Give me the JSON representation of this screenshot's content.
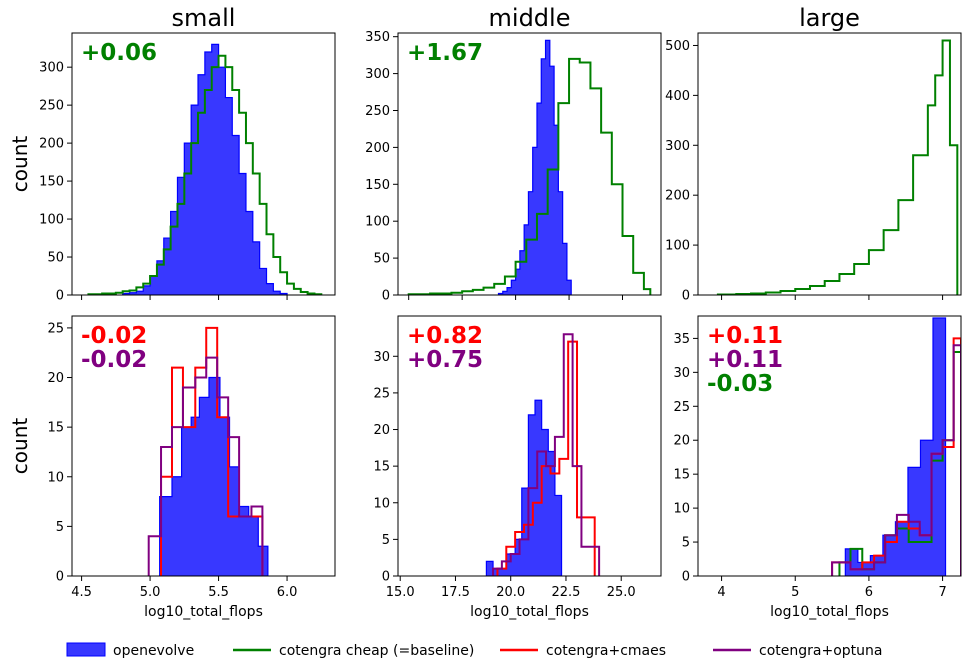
{
  "colors": {
    "openevolve": "#0000ff",
    "cheap": "#008000",
    "cmaes": "#ff0000",
    "optuna": "#800080"
  },
  "legend": [
    {
      "key": "openevolve",
      "label": "openevolve",
      "kind": "patch"
    },
    {
      "key": "cheap",
      "label": "cotengra cheap (=baseline)",
      "kind": "line"
    },
    {
      "key": "cmaes",
      "label": "cotengra+cmaes",
      "kind": "line"
    },
    {
      "key": "optuna",
      "label": "cotengra+optuna",
      "kind": "line"
    }
  ],
  "chart_data": [
    {
      "id": "p00",
      "type": "histogram",
      "title": "small",
      "ylabel": "count",
      "xlabel": "",
      "xlim": [
        4.43,
        6.35
      ],
      "ylim": [
        0,
        345
      ],
      "xticks": [
        4.5,
        5.0,
        5.5,
        6.0
      ],
      "xticklabels": [
        "",
        "",
        "",
        ""
      ],
      "yticks": [
        0,
        50,
        100,
        150,
        200,
        250,
        300
      ],
      "annotations": [
        {
          "text": "+0.06",
          "color": "#008000"
        }
      ],
      "series": [
        {
          "name": "openevolve",
          "kind": "fill",
          "color": "#0000ff",
          "edges": [
            4.8,
            4.85,
            4.9,
            4.95,
            5.0,
            5.05,
            5.1,
            5.15,
            5.2,
            5.25,
            5.3,
            5.35,
            5.4,
            5.45,
            5.5,
            5.55,
            5.6,
            5.65,
            5.7,
            5.75,
            5.8,
            5.85,
            5.9,
            5.95,
            6.0
          ],
          "counts": [
            2,
            3,
            5,
            12,
            25,
            45,
            75,
            110,
            155,
            200,
            250,
            290,
            320,
            330,
            300,
            260,
            210,
            160,
            110,
            70,
            35,
            15,
            5,
            2
          ]
        },
        {
          "name": "cotengra cheap (=baseline)",
          "kind": "step",
          "color": "#008000",
          "edges": [
            4.55,
            4.6,
            4.65,
            4.7,
            4.75,
            4.8,
            4.85,
            4.9,
            4.95,
            5.0,
            5.05,
            5.1,
            5.15,
            5.2,
            5.25,
            5.3,
            5.35,
            5.4,
            5.45,
            5.5,
            5.55,
            5.6,
            5.65,
            5.7,
            5.75,
            5.8,
            5.85,
            5.9,
            5.95,
            6.0,
            6.05,
            6.1,
            6.15,
            6.2,
            6.25
          ],
          "counts": [
            1,
            1,
            2,
            2,
            3,
            5,
            6,
            10,
            15,
            25,
            40,
            60,
            90,
            120,
            160,
            200,
            240,
            270,
            300,
            315,
            300,
            270,
            240,
            200,
            160,
            120,
            80,
            50,
            30,
            15,
            8,
            4,
            2,
            1
          ]
        }
      ]
    },
    {
      "id": "p01",
      "type": "histogram",
      "title": "middle",
      "ylabel": "",
      "xlabel": "",
      "xlim": [
        14.5,
        26.8
      ],
      "ylim": [
        0,
        355
      ],
      "xticks": [
        15.0,
        17.5,
        20.0,
        22.5,
        25.0
      ],
      "xticklabels": [
        "",
        "",
        "",
        "",
        ""
      ],
      "yticks": [
        0,
        50,
        100,
        150,
        200,
        250,
        300,
        350
      ],
      "annotations": [
        {
          "text": "+1.67",
          "color": "#008000"
        }
      ],
      "series": [
        {
          "name": "openevolve",
          "kind": "fill",
          "color": "#0000ff",
          "edges": [
            19.2,
            19.4,
            19.6,
            19.8,
            20.0,
            20.2,
            20.4,
            20.6,
            20.8,
            21.0,
            21.2,
            21.4,
            21.6,
            21.8,
            22.0,
            22.2,
            22.4,
            22.6
          ],
          "counts": [
            2,
            5,
            10,
            20,
            35,
            60,
            95,
            140,
            200,
            260,
            320,
            345,
            310,
            230,
            140,
            70,
            20
          ]
        },
        {
          "name": "cotengra cheap (=baseline)",
          "kind": "step",
          "color": "#008000",
          "edges": [
            15.0,
            15.5,
            16.0,
            16.5,
            17.0,
            17.5,
            18.0,
            18.5,
            19.0,
            19.5,
            20.0,
            20.5,
            21.0,
            21.5,
            22.0,
            22.5,
            23.0,
            23.5,
            24.0,
            24.5,
            25.0,
            25.5,
            26.0,
            26.3
          ],
          "counts": [
            1,
            1,
            2,
            2,
            3,
            5,
            7,
            10,
            15,
            25,
            45,
            75,
            110,
            170,
            260,
            320,
            315,
            280,
            220,
            150,
            80,
            30,
            8
          ]
        }
      ]
    },
    {
      "id": "p02",
      "type": "histogram",
      "title": "large",
      "ylabel": "",
      "xlabel": "",
      "xlim": [
        3.68,
        7.25
      ],
      "ylim": [
        0,
        525
      ],
      "xticks": [
        4,
        5,
        6,
        7
      ],
      "xticklabels": [
        "",
        "",
        "",
        ""
      ],
      "yticks": [
        0,
        100,
        200,
        300,
        400,
        500
      ],
      "annotations": [],
      "series": [
        {
          "name": "cotengra cheap (=baseline)",
          "kind": "step",
          "color": "#008000",
          "edges": [
            3.95,
            4.2,
            4.4,
            4.6,
            4.8,
            5.0,
            5.2,
            5.4,
            5.6,
            5.8,
            6.0,
            6.2,
            6.4,
            6.6,
            6.8,
            6.9,
            7.0,
            7.1,
            7.2
          ],
          "counts": [
            1,
            2,
            3,
            5,
            8,
            12,
            18,
            28,
            42,
            62,
            90,
            130,
            190,
            280,
            380,
            440,
            510,
            300
          ]
        }
      ]
    },
    {
      "id": "p10",
      "type": "histogram",
      "title": "",
      "ylabel": "count",
      "xlabel": "log10_total_flops",
      "xlim": [
        4.43,
        6.35
      ],
      "ylim": [
        0,
        26.2
      ],
      "xticks": [
        4.5,
        5.0,
        5.5,
        6.0
      ],
      "xticklabels": [
        "4.5",
        "5.0",
        "5.5",
        "6.0"
      ],
      "yticks": [
        0,
        5,
        10,
        15,
        20,
        25
      ],
      "annotations": [
        {
          "text": "-0.02",
          "color": "#ff0000"
        },
        {
          "text": "-0.02",
          "color": "#800080"
        }
      ],
      "series": [
        {
          "name": "openevolve",
          "kind": "fill",
          "color": "#0000ff",
          "edges": [
            5.07,
            5.16,
            5.23,
            5.3,
            5.36,
            5.43,
            5.51,
            5.58,
            5.65,
            5.72,
            5.79,
            5.86
          ],
          "counts": [
            8,
            10,
            15,
            16,
            18,
            20,
            16,
            11,
            7,
            6,
            3
          ]
        },
        {
          "name": "cotengra+cmaes",
          "kind": "step",
          "color": "#ff0000",
          "edges": [
            5.08,
            5.16,
            5.24,
            5.33,
            5.41,
            5.49,
            5.57,
            5.65,
            5.74,
            5.82
          ],
          "counts": [
            10,
            21,
            15,
            21,
            25,
            16,
            6,
            6,
            6
          ]
        },
        {
          "name": "cotengra+optuna",
          "kind": "step",
          "color": "#800080",
          "edges": [
            4.99,
            5.08,
            5.16,
            5.24,
            5.33,
            5.41,
            5.49,
            5.57,
            5.65,
            5.74,
            5.82
          ],
          "counts": [
            4,
            13,
            15,
            19,
            20,
            22,
            18,
            14,
            6,
            7
          ]
        }
      ]
    },
    {
      "id": "p11",
      "type": "histogram",
      "title": "",
      "ylabel": "",
      "xlabel": "log10_total_flops",
      "xlim": [
        14.9,
        26.8
      ],
      "ylim": [
        0,
        35.5
      ],
      "xticks": [
        15.0,
        17.5,
        20.0,
        22.5,
        25.0
      ],
      "xticklabels": [
        "15.0",
        "17.5",
        "20.0",
        "22.5",
        "25.0"
      ],
      "yticks": [
        0,
        5,
        10,
        15,
        20,
        25,
        30
      ],
      "annotations": [
        {
          "text": "+0.82",
          "color": "#ff0000"
        },
        {
          "text": "+0.75",
          "color": "#800080"
        }
      ],
      "series": [
        {
          "name": "openevolve",
          "kind": "fill",
          "color": "#0000ff",
          "edges": [
            18.9,
            19.2,
            19.5,
            19.8,
            20.2,
            20.5,
            20.8,
            21.1,
            21.4,
            21.7,
            22.0,
            22.3
          ],
          "counts": [
            2,
            1,
            1,
            3,
            5,
            12,
            22,
            24,
            20,
            17,
            11
          ]
        },
        {
          "name": "cotengra+cmaes",
          "kind": "step",
          "color": "#ff0000",
          "edges": [
            19.4,
            19.8,
            20.2,
            20.6,
            21.0,
            21.4,
            21.8,
            22.2,
            22.6,
            23.0,
            23.4,
            23.8
          ],
          "counts": [
            1,
            4,
            6,
            7,
            10,
            15,
            14,
            16,
            32,
            8,
            8
          ]
        },
        {
          "name": "cotengra+optuna",
          "kind": "step",
          "color": "#800080",
          "edges": [
            19.2,
            19.6,
            20.0,
            20.4,
            20.8,
            21.2,
            21.6,
            22.0,
            22.4,
            22.8,
            23.2,
            23.6,
            24.0
          ],
          "counts": [
            1,
            2,
            3,
            5,
            12,
            17,
            15,
            19,
            33,
            15,
            4,
            4
          ]
        }
      ]
    },
    {
      "id": "p12",
      "type": "histogram",
      "title": "",
      "ylabel": "",
      "xlabel": "log10_total_flops",
      "xlim": [
        3.68,
        7.25
      ],
      "ylim": [
        0,
        38.3
      ],
      "xticks": [
        4,
        5,
        6,
        7
      ],
      "xticklabels": [
        "4",
        "5",
        "6",
        "7"
      ],
      "yticks": [
        0,
        5,
        10,
        15,
        20,
        25,
        30,
        35
      ],
      "annotations": [
        {
          "text": "+0.11",
          "color": "#ff0000"
        },
        {
          "text": "+0.11",
          "color": "#800080"
        },
        {
          "text": "-0.03",
          "color": "#008000"
        }
      ],
      "series": [
        {
          "name": "openevolve",
          "kind": "fill",
          "color": "#0000ff",
          "edges": [
            5.68,
            5.85,
            6.02,
            6.19,
            6.36,
            6.53,
            6.7,
            6.87,
            7.04
          ],
          "counts": [
            4,
            2,
            3,
            6,
            8,
            16,
            20,
            38
          ]
        },
        {
          "name": "cotengra cheap (=baseline)",
          "kind": "step",
          "color": "#008000",
          "edges": [
            5.6,
            5.75,
            5.91,
            6.07,
            6.22,
            6.38,
            6.54,
            6.69,
            6.85,
            7.0,
            7.15,
            7.25
          ],
          "counts": [
            2,
            4,
            1,
            2,
            6,
            7,
            5,
            5,
            17,
            20,
            33
          ]
        },
        {
          "name": "cotengra+cmaes",
          "kind": "step",
          "color": "#ff0000",
          "edges": [
            5.5,
            5.75,
            5.91,
            6.07,
            6.22,
            6.38,
            6.54,
            6.69,
            6.85,
            7.0,
            7.15,
            7.25
          ],
          "counts": [
            2,
            1,
            2,
            3,
            5,
            8,
            7,
            6,
            18,
            19,
            35
          ]
        },
        {
          "name": "cotengra+optuna",
          "kind": "step",
          "color": "#800080",
          "edges": [
            5.5,
            5.75,
            5.91,
            6.07,
            6.22,
            6.38,
            6.54,
            6.69,
            6.85,
            7.0,
            7.15,
            7.25
          ],
          "counts": [
            2,
            1,
            1,
            2,
            6,
            9,
            8,
            6,
            18,
            20,
            34
          ]
        }
      ]
    }
  ]
}
